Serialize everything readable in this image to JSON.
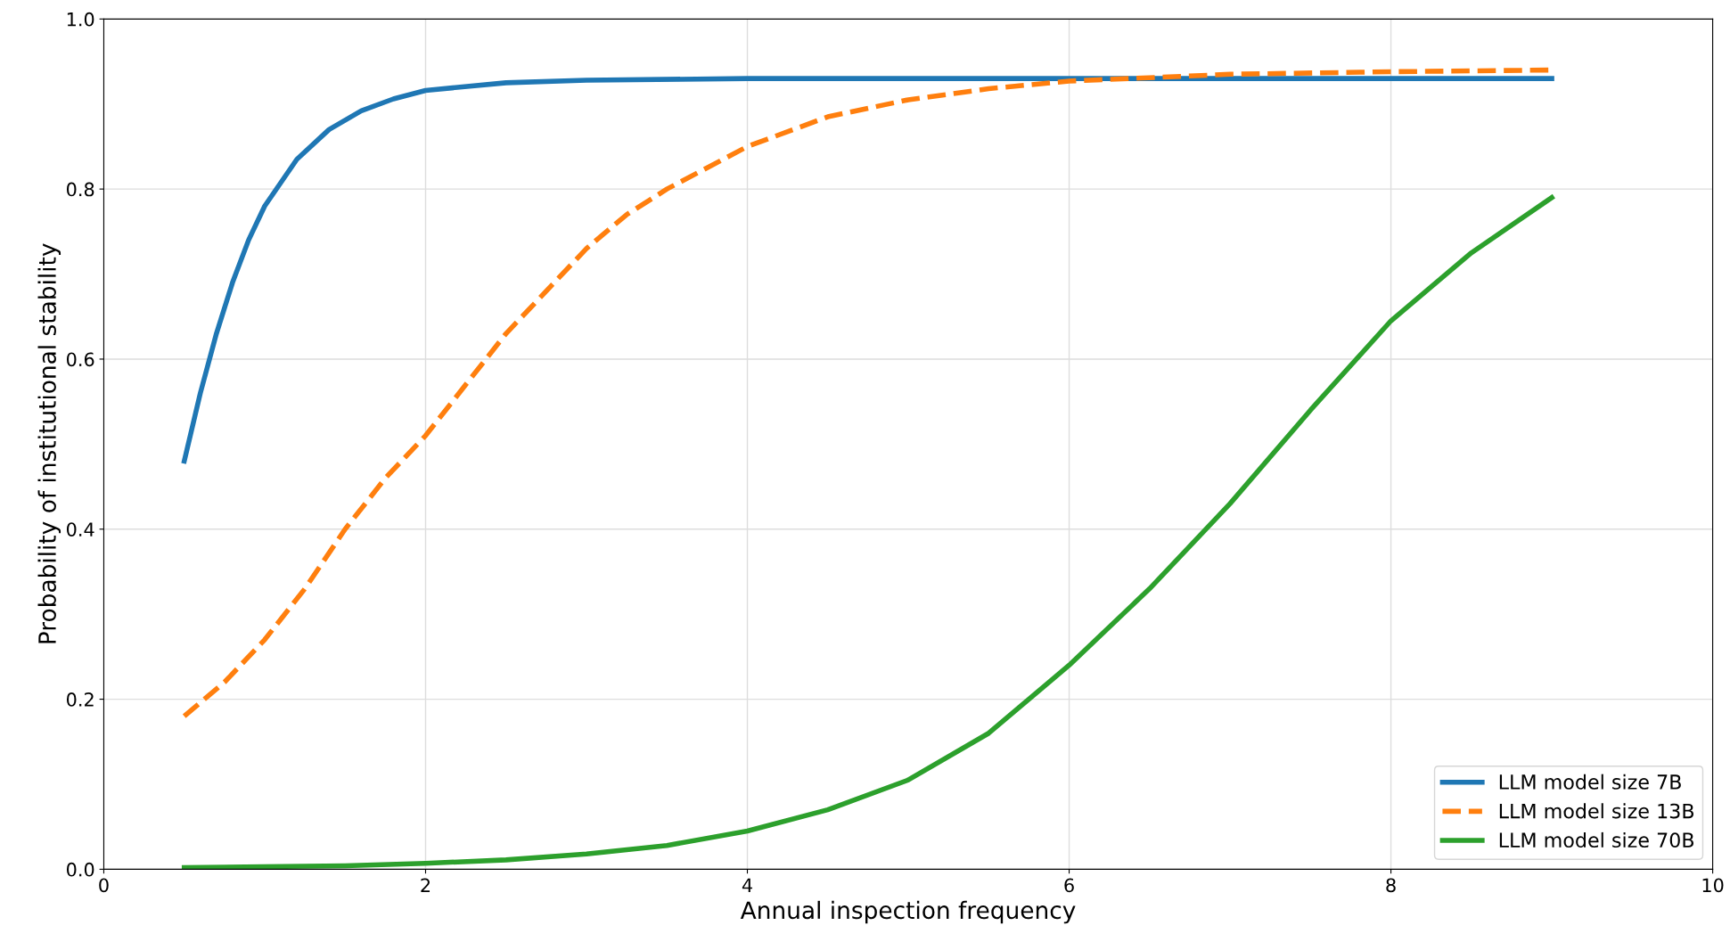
{
  "chart_data": {
    "type": "line",
    "xlabel": "Annual inspection frequency",
    "ylabel": "Probability of institutional stability",
    "xlim": [
      0,
      10
    ],
    "ylim": [
      0,
      1
    ],
    "xticks": [
      0,
      2,
      4,
      6,
      8,
      10
    ],
    "yticks": [
      {
        "value": 0,
        "label": "0.0"
      },
      {
        "value": 0.2,
        "label": "0.2"
      },
      {
        "value": 0.4,
        "label": "0.4"
      },
      {
        "value": 0.6,
        "label": "0.6"
      },
      {
        "value": 0.8,
        "label": "0.8"
      },
      {
        "value": 1,
        "label": "1.0"
      }
    ],
    "grid": true,
    "legend": "bottom right",
    "series": [
      {
        "name": "LLM model size 7B",
        "color": "#1f77b4",
        "line_style": "solid",
        "x": [
          0.5,
          0.6,
          0.7,
          0.8,
          0.9,
          1.0,
          1.2,
          1.4,
          1.6,
          1.8,
          2.0,
          2.5,
          3,
          4,
          6,
          9
        ],
        "values": [
          0.48,
          0.56,
          0.63,
          0.69,
          0.74,
          0.78,
          0.835,
          0.87,
          0.892,
          0.906,
          0.916,
          0.925,
          0.928,
          0.93,
          0.93,
          0.93
        ]
      },
      {
        "name": "LLM model size 13B",
        "color": "#ff7f0e",
        "line_style": "dashed",
        "x": [
          0.5,
          0.75,
          1.0,
          1.25,
          1.5,
          1.75,
          2.0,
          2.25,
          2.5,
          2.75,
          3.0,
          3.25,
          3.5,
          4.0,
          4.5,
          5,
          5.5,
          6,
          7,
          8,
          9
        ],
        "values": [
          0.18,
          0.22,
          0.27,
          0.33,
          0.4,
          0.46,
          0.51,
          0.57,
          0.63,
          0.68,
          0.73,
          0.77,
          0.8,
          0.85,
          0.885,
          0.905,
          0.918,
          0.927,
          0.935,
          0.938,
          0.94
        ]
      },
      {
        "name": "LLM model size 70B",
        "color": "#2ca02c",
        "line_style": "solid",
        "x": [
          0.5,
          1,
          1.5,
          2,
          2.5,
          3,
          3.5,
          4,
          4.5,
          5,
          5.5,
          6,
          6.5,
          7,
          7.5,
          8,
          8.5,
          9
        ],
        "values": [
          0.002,
          0.003,
          0.004,
          0.007,
          0.011,
          0.018,
          0.028,
          0.045,
          0.07,
          0.105,
          0.16,
          0.24,
          0.33,
          0.43,
          0.54,
          0.645,
          0.725,
          0.79
        ]
      }
    ]
  }
}
